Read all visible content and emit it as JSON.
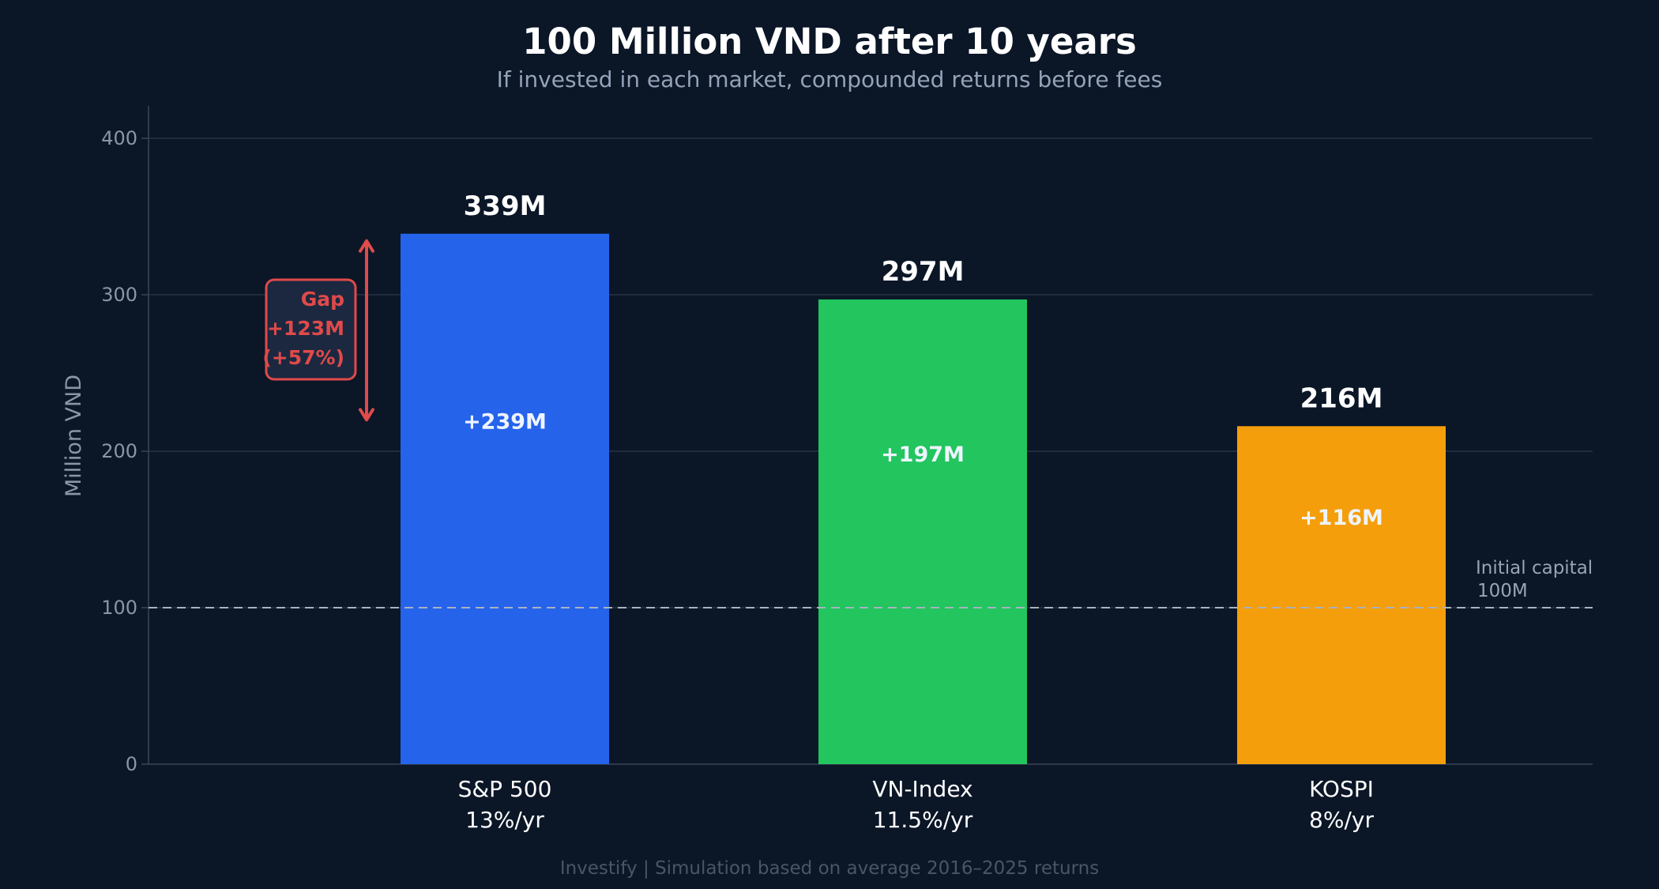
{
  "header": {
    "title": "100 Million VND after 10 years",
    "subtitle": "If invested in each market, compounded returns before fees"
  },
  "footer": {
    "text": "Investify  |  Simulation based on average 2016–2025 returns"
  },
  "chart_data": {
    "type": "bar",
    "ylabel": "Million VND",
    "ylim": [
      0,
      420
    ],
    "yticks": [
      0,
      100,
      200,
      300,
      400
    ],
    "grid": true,
    "categories": [
      "S&P 500",
      "VN-Index",
      "KOSPI"
    ],
    "rates": [
      "13%/yr",
      "11.5%/yr",
      "8%/yr"
    ],
    "values": [
      339,
      297,
      216
    ],
    "value_labels": [
      "339M",
      "297M",
      "216M"
    ],
    "gain_labels": [
      "+239M",
      "+197M",
      "+116M"
    ],
    "colors": [
      "#2563eb",
      "#22c55e",
      "#f59e0b"
    ],
    "reference_line": {
      "value": 100,
      "label_line1": "Initial capital",
      "label_line2": "100M"
    },
    "gap_annotation": {
      "from_value": 216,
      "to_value": 339,
      "line1": "Gap",
      "line2": "+123M",
      "line3": "(+57%)",
      "color": "#e04a4a"
    }
  }
}
